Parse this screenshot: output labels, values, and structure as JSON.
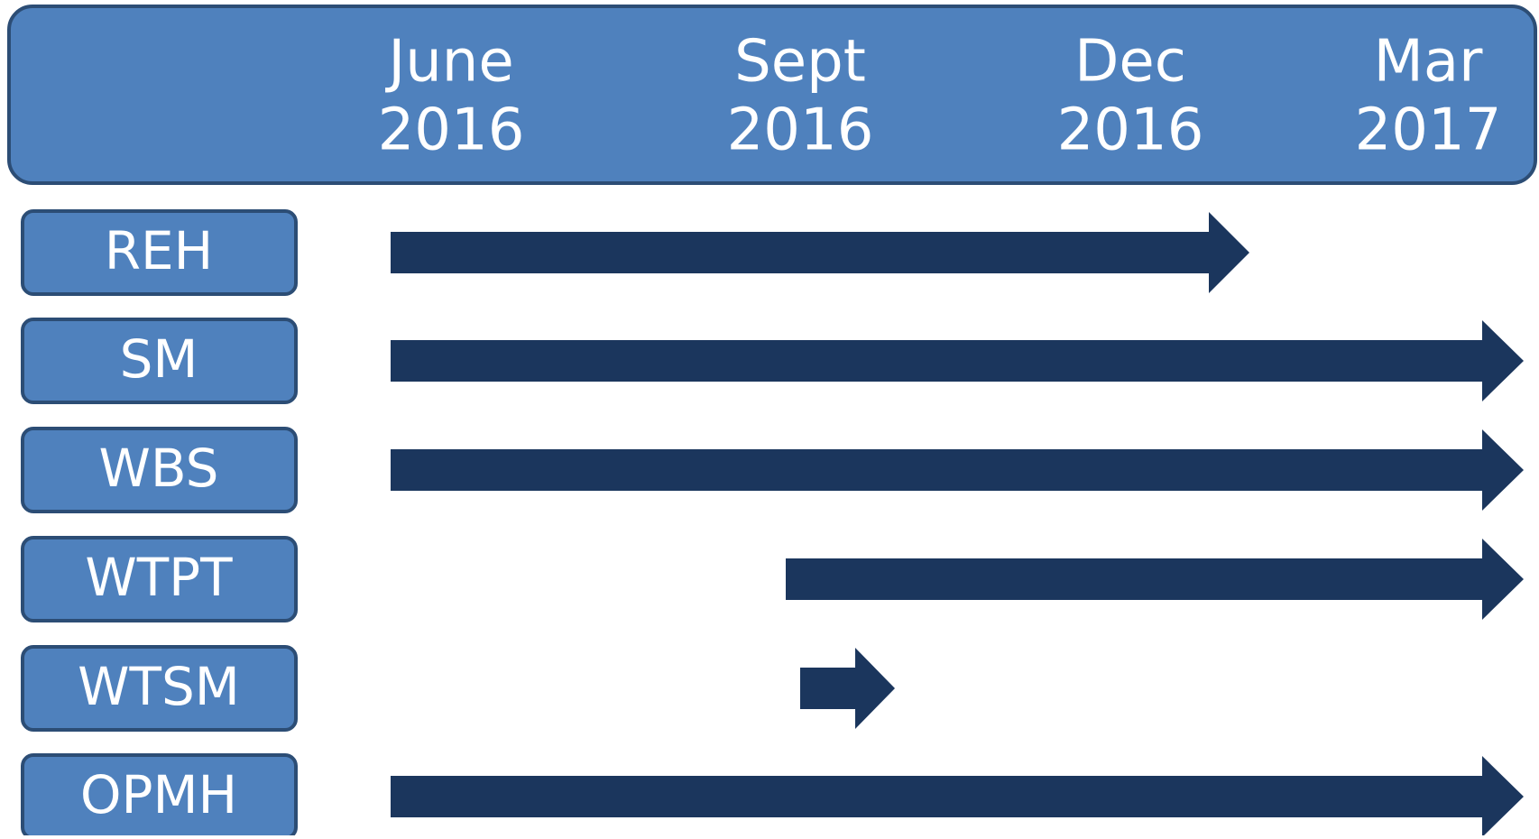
{
  "header": {
    "columns": [
      {
        "month": "June",
        "year": "2016"
      },
      {
        "month": "Sept",
        "year": "2016"
      },
      {
        "month": "Dec",
        "year": "2016"
      },
      {
        "month": "Mar",
        "year": "2017"
      }
    ]
  },
  "rows": [
    "REH",
    "SM",
    "WBS",
    "WTPT",
    "WTSM",
    "OPMH"
  ]
}
